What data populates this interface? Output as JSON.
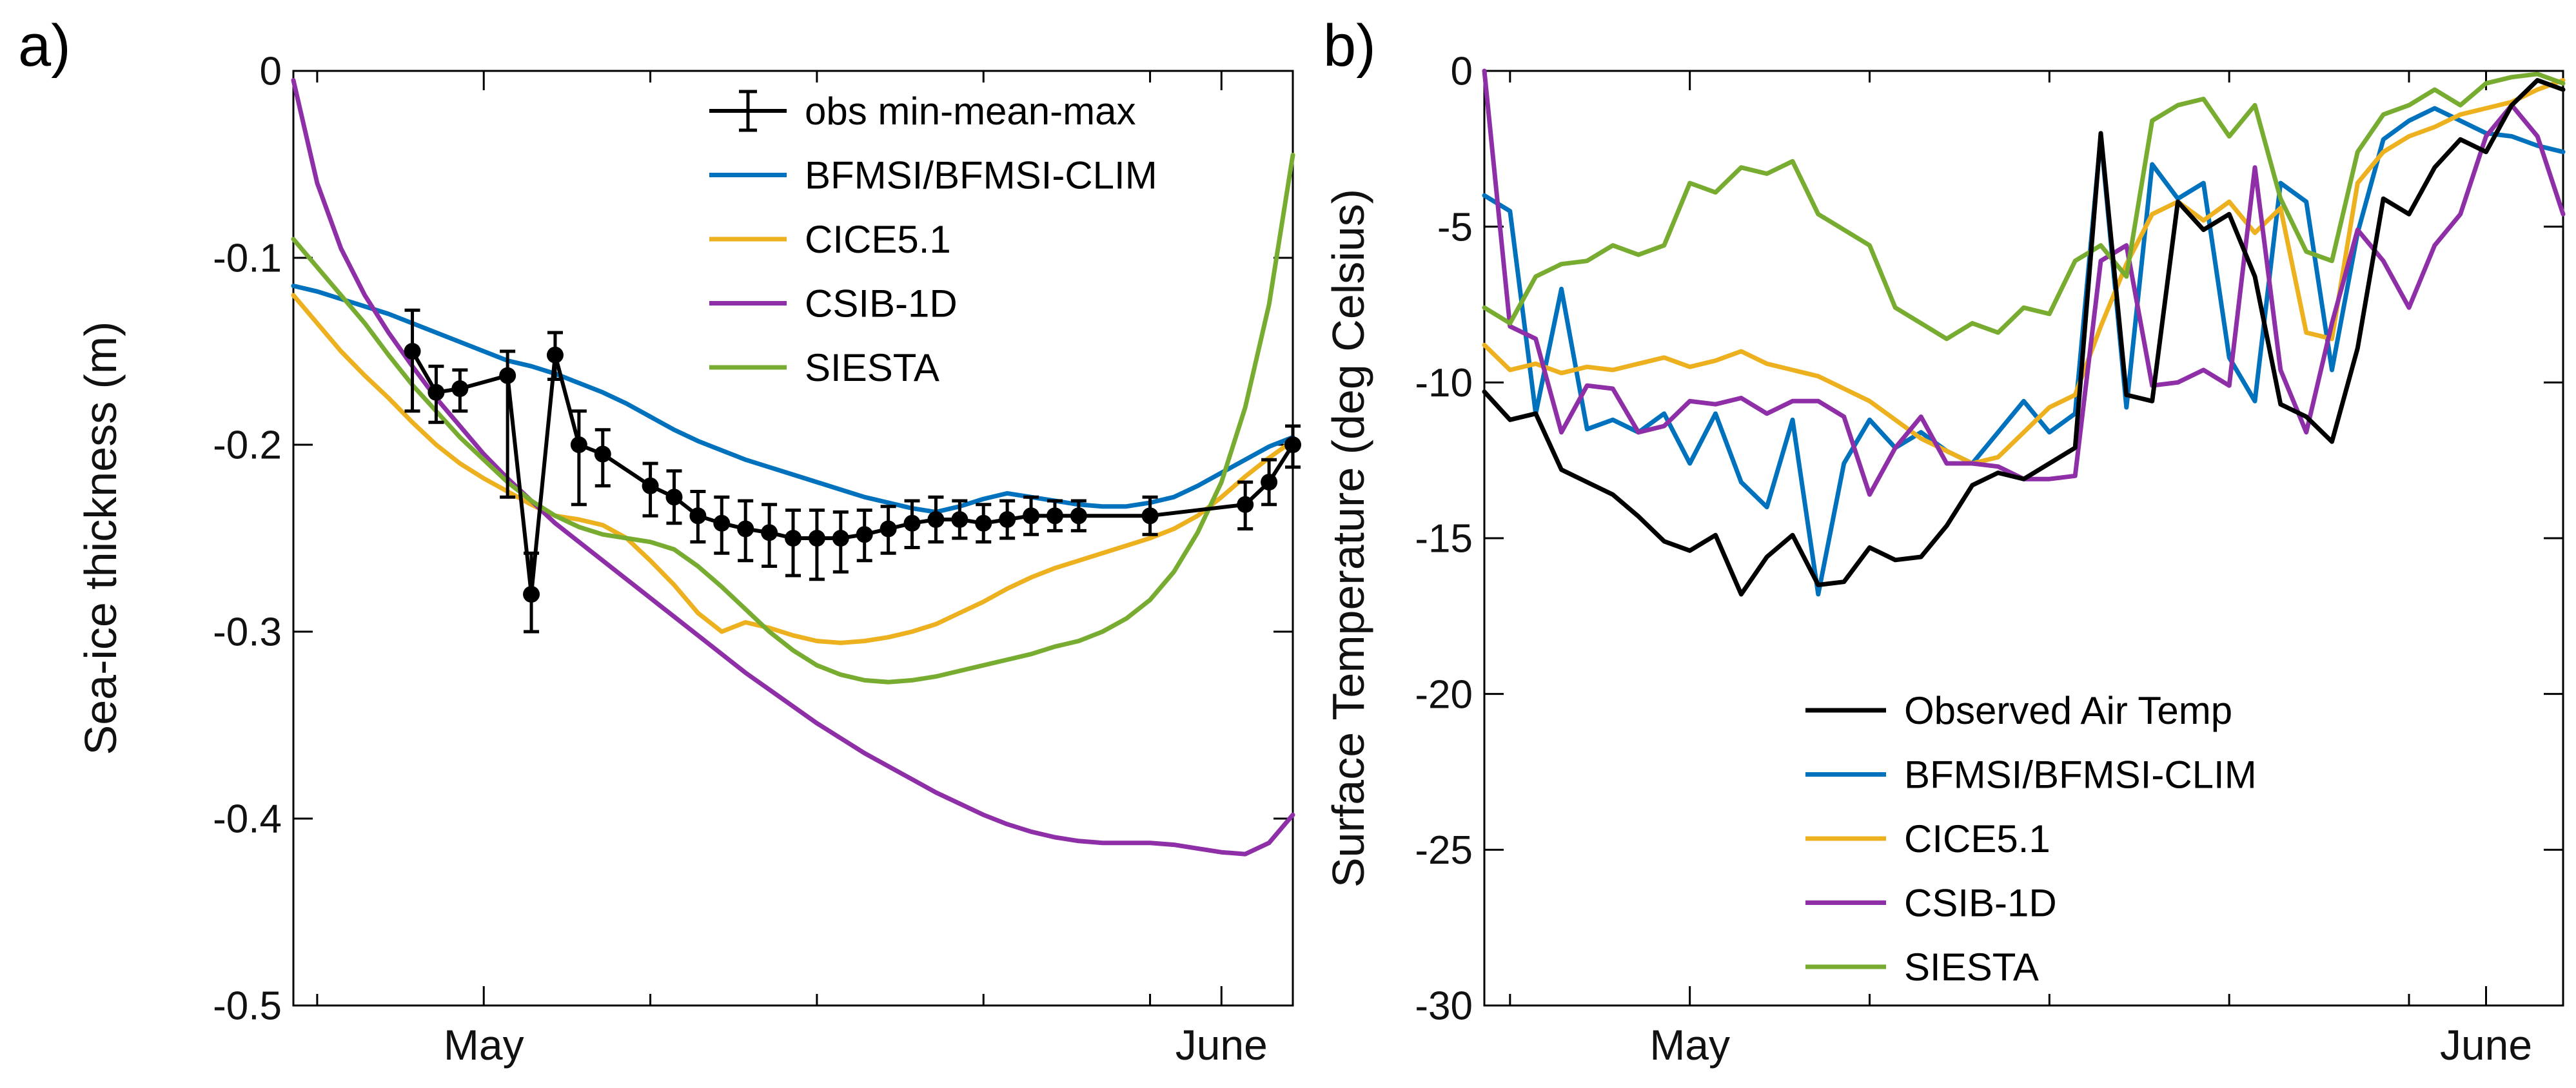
{
  "background": "#FFFFFF",
  "axes_color": "#000000",
  "chart_data": [
    {
      "id": "sea-ice-thickness",
      "type": "line",
      "panel_label": "a)",
      "title": "",
      "xlabel": "",
      "ylabel": "Sea-ice thickness (m)",
      "xlim": [
        0,
        42
      ],
      "ylim": [
        -0.5,
        0
      ],
      "x_note": "day index: 0 = Apr 23, May 1 = day 8, June 1 = day 39",
      "xticks": {
        "values": [
          8,
          39
        ],
        "labels": [
          "May",
          "June"
        ]
      },
      "xticks_minor": [
        1,
        15,
        22,
        29,
        36
      ],
      "yticks": {
        "values": [
          0,
          -0.1,
          -0.2,
          -0.3,
          -0.4,
          -0.5
        ],
        "labels": [
          "0",
          "-0.1",
          "-0.2",
          "-0.3",
          "-0.4",
          "-0.5"
        ]
      },
      "grid": false,
      "legend": {
        "position": "upper center-right inside",
        "entries": [
          {
            "label": "obs min-mean-max",
            "color": "#000000",
            "glyph": "errorbar"
          },
          {
            "label": "BFMSI/BFMSI-CLIM",
            "color": "#0072BD",
            "glyph": "line"
          },
          {
            "label": "CICE5.1",
            "color": "#EDB120",
            "glyph": "line"
          },
          {
            "label": "CSIB-1D",
            "color": "#8E2FA8",
            "glyph": "line"
          },
          {
            "label": "SIESTA",
            "color": "#77AC30",
            "glyph": "line"
          }
        ]
      },
      "obs": {
        "name": "obs min-mean-max",
        "color": "#000000",
        "x": [
          5,
          6,
          7,
          9,
          10,
          11,
          12,
          13,
          15,
          16,
          17,
          18,
          19,
          20,
          21,
          22,
          23,
          24,
          25,
          26,
          27,
          28,
          29,
          30,
          31,
          32,
          33,
          36,
          40,
          41,
          42
        ],
        "mean": [
          -0.15,
          -0.172,
          -0.17,
          -0.163,
          -0.28,
          -0.152,
          -0.2,
          -0.205,
          -0.222,
          -0.228,
          -0.238,
          -0.242,
          -0.245,
          -0.247,
          -0.25,
          -0.25,
          -0.25,
          -0.248,
          -0.245,
          -0.242,
          -0.24,
          -0.24,
          -0.242,
          -0.24,
          -0.238,
          -0.238,
          -0.238,
          -0.238,
          -0.232,
          -0.22,
          -0.2
        ],
        "min": [
          -0.182,
          -0.188,
          -0.182,
          -0.228,
          -0.3,
          -0.165,
          -0.232,
          -0.222,
          -0.238,
          -0.242,
          -0.252,
          -0.258,
          -0.262,
          -0.265,
          -0.27,
          -0.272,
          -0.268,
          -0.262,
          -0.258,
          -0.255,
          -0.252,
          -0.25,
          -0.252,
          -0.25,
          -0.248,
          -0.246,
          -0.246,
          -0.248,
          -0.245,
          -0.232,
          -0.212
        ],
        "max": [
          -0.128,
          -0.158,
          -0.16,
          -0.15,
          -0.258,
          -0.14,
          -0.182,
          -0.192,
          -0.21,
          -0.214,
          -0.225,
          -0.228,
          -0.23,
          -0.232,
          -0.235,
          -0.235,
          -0.236,
          -0.235,
          -0.233,
          -0.23,
          -0.228,
          -0.23,
          -0.232,
          -0.23,
          -0.228,
          -0.23,
          -0.23,
          -0.228,
          -0.22,
          -0.208,
          -0.19
        ]
      },
      "series": [
        {
          "name": "BFMSI/BFMSI-CLIM",
          "color": "#0072BD",
          "x_start": 0,
          "x_step": 1,
          "y": [
            -0.115,
            -0.118,
            -0.122,
            -0.126,
            -0.13,
            -0.135,
            -0.14,
            -0.145,
            -0.15,
            -0.155,
            -0.158,
            -0.162,
            -0.167,
            -0.172,
            -0.178,
            -0.185,
            -0.192,
            -0.198,
            -0.203,
            -0.208,
            -0.212,
            -0.216,
            -0.22,
            -0.224,
            -0.228,
            -0.231,
            -0.234,
            -0.236,
            -0.233,
            -0.229,
            -0.226,
            -0.228,
            -0.23,
            -0.232,
            -0.233,
            -0.233,
            -0.231,
            -0.228,
            -0.222,
            -0.215,
            -0.208,
            -0.201,
            -0.196
          ]
        },
        {
          "name": "CICE5.1",
          "color": "#EDB120",
          "x_start": 0,
          "x_step": 1,
          "y": [
            -0.12,
            -0.135,
            -0.15,
            -0.163,
            -0.175,
            -0.188,
            -0.2,
            -0.21,
            -0.218,
            -0.225,
            -0.232,
            -0.238,
            -0.24,
            -0.243,
            -0.25,
            -0.262,
            -0.275,
            -0.29,
            -0.3,
            -0.295,
            -0.298,
            -0.302,
            -0.305,
            -0.306,
            -0.305,
            -0.303,
            -0.3,
            -0.296,
            -0.29,
            -0.284,
            -0.277,
            -0.271,
            -0.266,
            -0.262,
            -0.258,
            -0.254,
            -0.25,
            -0.245,
            -0.238,
            -0.228,
            -0.217,
            -0.207,
            -0.198
          ]
        },
        {
          "name": "CSIB-1D",
          "color": "#8E2FA8",
          "x_start": 0,
          "x_step": 1,
          "y": [
            -0.005,
            -0.06,
            -0.095,
            -0.12,
            -0.14,
            -0.158,
            -0.175,
            -0.19,
            -0.205,
            -0.218,
            -0.23,
            -0.242,
            -0.252,
            -0.262,
            -0.272,
            -0.282,
            -0.292,
            -0.302,
            -0.312,
            -0.322,
            -0.331,
            -0.34,
            -0.349,
            -0.357,
            -0.365,
            -0.372,
            -0.379,
            -0.386,
            -0.392,
            -0.398,
            -0.403,
            -0.407,
            -0.41,
            -0.412,
            -0.413,
            -0.413,
            -0.413,
            -0.414,
            -0.416,
            -0.418,
            -0.419,
            -0.413,
            -0.398
          ]
        },
        {
          "name": "SIESTA",
          "color": "#77AC30",
          "x_start": 0,
          "x_step": 1,
          "y": [
            -0.09,
            -0.105,
            -0.12,
            -0.135,
            -0.152,
            -0.168,
            -0.182,
            -0.196,
            -0.208,
            -0.22,
            -0.23,
            -0.238,
            -0.244,
            -0.248,
            -0.25,
            -0.252,
            -0.256,
            -0.265,
            -0.276,
            -0.288,
            -0.3,
            -0.31,
            -0.318,
            -0.323,
            -0.326,
            -0.327,
            -0.326,
            -0.324,
            -0.321,
            -0.318,
            -0.315,
            -0.312,
            -0.308,
            -0.305,
            -0.3,
            -0.293,
            -0.283,
            -0.268,
            -0.247,
            -0.22,
            -0.18,
            -0.125,
            -0.045
          ]
        }
      ]
    },
    {
      "id": "surface-temperature",
      "type": "line",
      "panel_label": "b)",
      "title": "",
      "xlabel": "",
      "ylabel": "Surface Temperature (deg Celsius)",
      "xlim": [
        0,
        42
      ],
      "ylim": [
        -30,
        0
      ],
      "x_note": "day index: 0 = Apr 23, May 1 = day 8, June 1 = day 39",
      "xticks": {
        "values": [
          8,
          39
        ],
        "labels": [
          "May",
          "June"
        ]
      },
      "xticks_minor": [
        1,
        15,
        22,
        29,
        36
      ],
      "yticks": {
        "values": [
          0,
          -5,
          -10,
          -15,
          -20,
          -25,
          -30
        ],
        "labels": [
          "0",
          "-5",
          "-10",
          "-15",
          "-20",
          "-25",
          "-30"
        ]
      },
      "grid": false,
      "legend": {
        "position": "lower right inside",
        "entries": [
          {
            "label": "Observed Air Temp",
            "color": "#000000",
            "glyph": "line"
          },
          {
            "label": "BFMSI/BFMSI-CLIM",
            "color": "#0072BD",
            "glyph": "line"
          },
          {
            "label": "CICE5.1",
            "color": "#EDB120",
            "glyph": "line"
          },
          {
            "label": "CSIB-1D",
            "color": "#8E2FA8",
            "glyph": "line"
          },
          {
            "label": "SIESTA",
            "color": "#77AC30",
            "glyph": "line"
          }
        ]
      },
      "series": [
        {
          "name": "BFMSI/BFMSI-CLIM",
          "color": "#0072BD",
          "x_start": 0,
          "x_step": 1,
          "y": [
            -4.0,
            -4.5,
            -11.0,
            -7.0,
            -11.5,
            -11.2,
            -11.6,
            -11.0,
            -12.6,
            -11.0,
            -13.2,
            -14.0,
            -11.2,
            -16.8,
            -12.6,
            -11.2,
            -12.1,
            -11.6,
            -12.2,
            -12.6,
            -11.6,
            -10.6,
            -11.6,
            -11.0,
            -2.1,
            -10.8,
            -3.0,
            -4.1,
            -3.6,
            -9.2,
            -10.6,
            -3.6,
            -4.2,
            -9.6,
            -5.2,
            -2.2,
            -1.6,
            -1.2,
            -1.6,
            -2.0,
            -2.1,
            -2.4,
            -2.6
          ]
        },
        {
          "name": "CICE5.1",
          "color": "#EDB120",
          "x_start": 0,
          "x_step": 1,
          "y": [
            -8.8,
            -9.6,
            -9.4,
            -9.7,
            -9.5,
            -9.6,
            -9.4,
            -9.2,
            -9.5,
            -9.3,
            -9.0,
            -9.4,
            -9.6,
            -9.8,
            -10.2,
            -10.6,
            -11.2,
            -11.8,
            -12.2,
            -12.6,
            -12.4,
            -11.6,
            -10.8,
            -10.4,
            -8.2,
            -6.2,
            -4.6,
            -4.2,
            -4.8,
            -4.2,
            -5.2,
            -4.4,
            -8.4,
            -8.6,
            -3.6,
            -2.6,
            -2.1,
            -1.8,
            -1.4,
            -1.2,
            -1.0,
            -0.6,
            -0.3
          ]
        },
        {
          "name": "CSIB-1D",
          "color": "#8E2FA8",
          "x_start": 0,
          "x_step": 1,
          "y": [
            0.0,
            -8.2,
            -8.6,
            -11.6,
            -10.1,
            -10.2,
            -11.6,
            -11.4,
            -10.6,
            -10.7,
            -10.5,
            -11.0,
            -10.6,
            -10.6,
            -11.1,
            -13.6,
            -12.1,
            -11.1,
            -12.6,
            -12.6,
            -12.7,
            -13.1,
            -13.1,
            -13.0,
            -6.1,
            -5.6,
            -10.1,
            -10.0,
            -9.6,
            -10.1,
            -3.1,
            -9.6,
            -11.6,
            -8.1,
            -5.1,
            -6.1,
            -7.6,
            -5.6,
            -4.6,
            -2.1,
            -1.1,
            -2.1,
            -4.6
          ]
        },
        {
          "name": "SIESTA",
          "color": "#77AC30",
          "x_start": 0,
          "x_step": 1,
          "y": [
            -7.6,
            -8.1,
            -6.6,
            -6.2,
            -6.1,
            -5.6,
            -5.9,
            -5.6,
            -3.6,
            -3.9,
            -3.1,
            -3.3,
            -2.9,
            -4.6,
            -5.1,
            -5.6,
            -7.6,
            -8.1,
            -8.6,
            -8.1,
            -8.4,
            -7.6,
            -7.8,
            -6.1,
            -5.6,
            -6.6,
            -1.6,
            -1.1,
            -0.9,
            -2.1,
            -1.1,
            -4.1,
            -5.8,
            -6.1,
            -2.6,
            -1.4,
            -1.1,
            -0.6,
            -1.1,
            -0.4,
            -0.2,
            -0.1,
            -0.4
          ]
        },
        {
          "name": "Observed Air Temp",
          "color": "#000000",
          "x_start": 0,
          "x_step": 1,
          "y": [
            -10.3,
            -11.2,
            -11.0,
            -12.8,
            -13.2,
            -13.6,
            -14.3,
            -15.1,
            -15.4,
            -14.9,
            -16.8,
            -15.6,
            -14.9,
            -16.5,
            -16.4,
            -15.3,
            -15.7,
            -15.6,
            -14.6,
            -13.3,
            -12.9,
            -13.1,
            -12.6,
            -12.1,
            -2.0,
            -10.4,
            -10.6,
            -4.2,
            -5.1,
            -4.6,
            -6.6,
            -10.7,
            -11.1,
            -11.9,
            -8.9,
            -4.1,
            -4.6,
            -3.1,
            -2.2,
            -2.6,
            -1.1,
            -0.3,
            -0.6
          ]
        }
      ]
    }
  ]
}
